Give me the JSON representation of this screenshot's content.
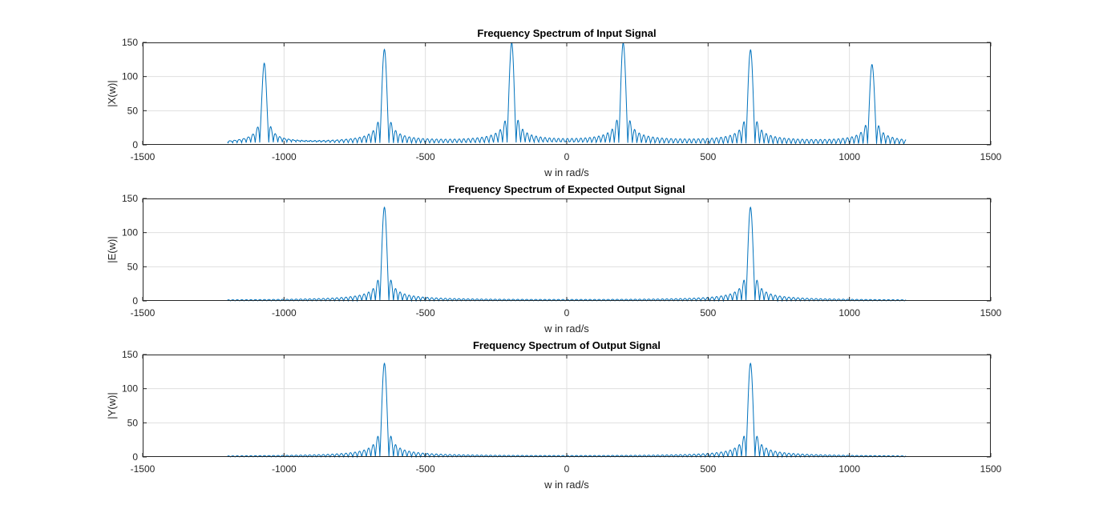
{
  "chart_data": [
    {
      "type": "line",
      "title": "Frequency Spectrum of Input Signal",
      "xlabel": "w in rad/s",
      "ylabel": "|X(w)|",
      "xlim": [
        -1500,
        1500
      ],
      "ylim": [
        0,
        150
      ],
      "xticks": [
        -1500,
        -1000,
        -500,
        0,
        500,
        1000,
        1500
      ],
      "xtick_labels": [
        "-1500",
        "-1000",
        "-500",
        "0",
        "500",
        "1000",
        "1500"
      ],
      "yticks": [
        0,
        50,
        100,
        150
      ],
      "ytick_labels": [
        "0",
        "50",
        "100",
        "150"
      ],
      "grid": true,
      "x_range": [
        -1200,
        1200
      ],
      "peaks": [
        {
          "x": -1070,
          "y": 116
        },
        {
          "x": -645,
          "y": 137
        },
        {
          "x": -195,
          "y": 146
        },
        {
          "x": 200,
          "y": 146
        },
        {
          "x": 650,
          "y": 137
        },
        {
          "x": 1080,
          "y": 116
        }
      ],
      "line_color": "#0072BD"
    },
    {
      "type": "line",
      "title": "Frequency Spectrum of Expected Output Signal",
      "xlabel": "w in rad/s",
      "ylabel": "|E(w)|",
      "xlim": [
        -1500,
        1500
      ],
      "ylim": [
        0,
        150
      ],
      "xticks": [
        -1500,
        -1000,
        -500,
        0,
        500,
        1000,
        1500
      ],
      "xtick_labels": [
        "-1500",
        "-1000",
        "-500",
        "0",
        "500",
        "1000",
        "1500"
      ],
      "yticks": [
        0,
        50,
        100,
        150
      ],
      "ytick_labels": [
        "0",
        "50",
        "100",
        "150"
      ],
      "grid": true,
      "x_range": [
        -1200,
        1200
      ],
      "peaks": [
        {
          "x": -645,
          "y": 137
        },
        {
          "x": 650,
          "y": 137
        }
      ],
      "line_color": "#0072BD"
    },
    {
      "type": "line",
      "title": "Frequency Spectrum of Output Signal",
      "xlabel": "w in rad/s",
      "ylabel": "|Y(w)|",
      "xlim": [
        -1500,
        1500
      ],
      "ylim": [
        0,
        150
      ],
      "xticks": [
        -1500,
        -1000,
        -500,
        0,
        500,
        1000,
        1500
      ],
      "xtick_labels": [
        "-1500",
        "-1000",
        "-500",
        "0",
        "500",
        "1000",
        "1500"
      ],
      "yticks": [
        0,
        50,
        100,
        150
      ],
      "ytick_labels": [
        "0",
        "50",
        "100",
        "150"
      ],
      "grid": true,
      "x_range": [
        -1200,
        1200
      ],
      "peaks": [
        {
          "x": -645,
          "y": 137
        },
        {
          "x": 650,
          "y": 137
        }
      ],
      "line_color": "#0072BD"
    }
  ]
}
